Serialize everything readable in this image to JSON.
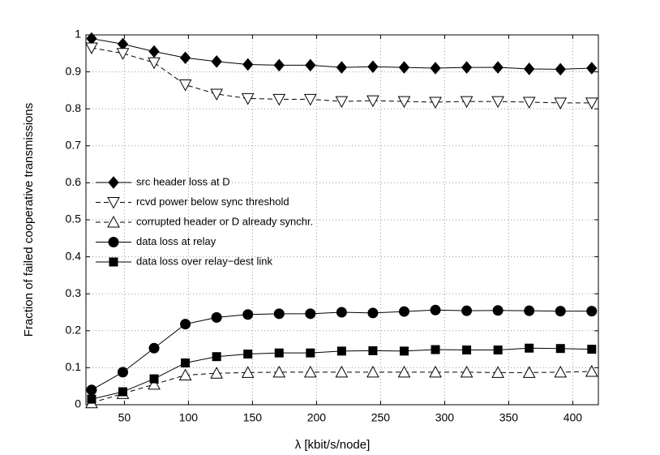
{
  "chart_data": {
    "type": "line",
    "xlabel": "λ  [kbit/s/node]",
    "ylabel": "Fraction of failed cooperative transmissions",
    "x": [
      24.4,
      48.8,
      73.2,
      97.6,
      122,
      146.4,
      170.8,
      195.2,
      219.6,
      244,
      268.4,
      292.8,
      317.2,
      341.6,
      366,
      390.4,
      414.8
    ],
    "series": [
      {
        "name": "src header loss at D",
        "color": "#000000",
        "marker": "diamond",
        "filled": true,
        "dashed": false,
        "values": [
          0.99,
          0.975,
          0.955,
          0.938,
          0.928,
          0.92,
          0.918,
          0.918,
          0.912,
          0.914,
          0.912,
          0.91,
          0.912,
          0.912,
          0.908,
          0.907,
          0.91
        ]
      },
      {
        "name": "rcvd power below sync threshold",
        "color": "#000000",
        "marker": "triangle-down",
        "filled": false,
        "dashed": true,
        "values": [
          0.965,
          0.95,
          0.925,
          0.865,
          0.84,
          0.828,
          0.826,
          0.826,
          0.82,
          0.822,
          0.82,
          0.818,
          0.82,
          0.82,
          0.818,
          0.816,
          0.816
        ]
      },
      {
        "name": "corrupted header or D already synchr.",
        "color": "#000000",
        "marker": "triangle-up",
        "filled": false,
        "dashed": true,
        "values": [
          0.005,
          0.03,
          0.055,
          0.08,
          0.085,
          0.087,
          0.088,
          0.088,
          0.088,
          0.088,
          0.088,
          0.088,
          0.088,
          0.087,
          0.087,
          0.088,
          0.09
        ]
      },
      {
        "name": "data loss at relay",
        "color": "#000000",
        "marker": "circle",
        "filled": true,
        "dashed": false,
        "values": [
          0.04,
          0.088,
          0.153,
          0.218,
          0.236,
          0.244,
          0.246,
          0.246,
          0.25,
          0.248,
          0.252,
          0.256,
          0.254,
          0.255,
          0.254,
          0.253,
          0.253
        ]
      },
      {
        "name": "data loss over relay−dest link",
        "color": "#000000",
        "marker": "square",
        "filled": true,
        "dashed": false,
        "values": [
          0.015,
          0.035,
          0.07,
          0.113,
          0.13,
          0.137,
          0.14,
          0.14,
          0.145,
          0.146,
          0.145,
          0.149,
          0.148,
          0.148,
          0.153,
          0.152,
          0.15
        ]
      }
    ],
    "xlim": [
      20,
      420
    ],
    "xticks": [
      50,
      100,
      150,
      200,
      250,
      300,
      350,
      400
    ],
    "ylim": [
      0,
      1
    ],
    "yticks": [
      0,
      0.1,
      0.2,
      0.3,
      0.4,
      0.5,
      0.6,
      0.7,
      0.8,
      0.9,
      1
    ],
    "grid": true,
    "legend": "center-left"
  }
}
